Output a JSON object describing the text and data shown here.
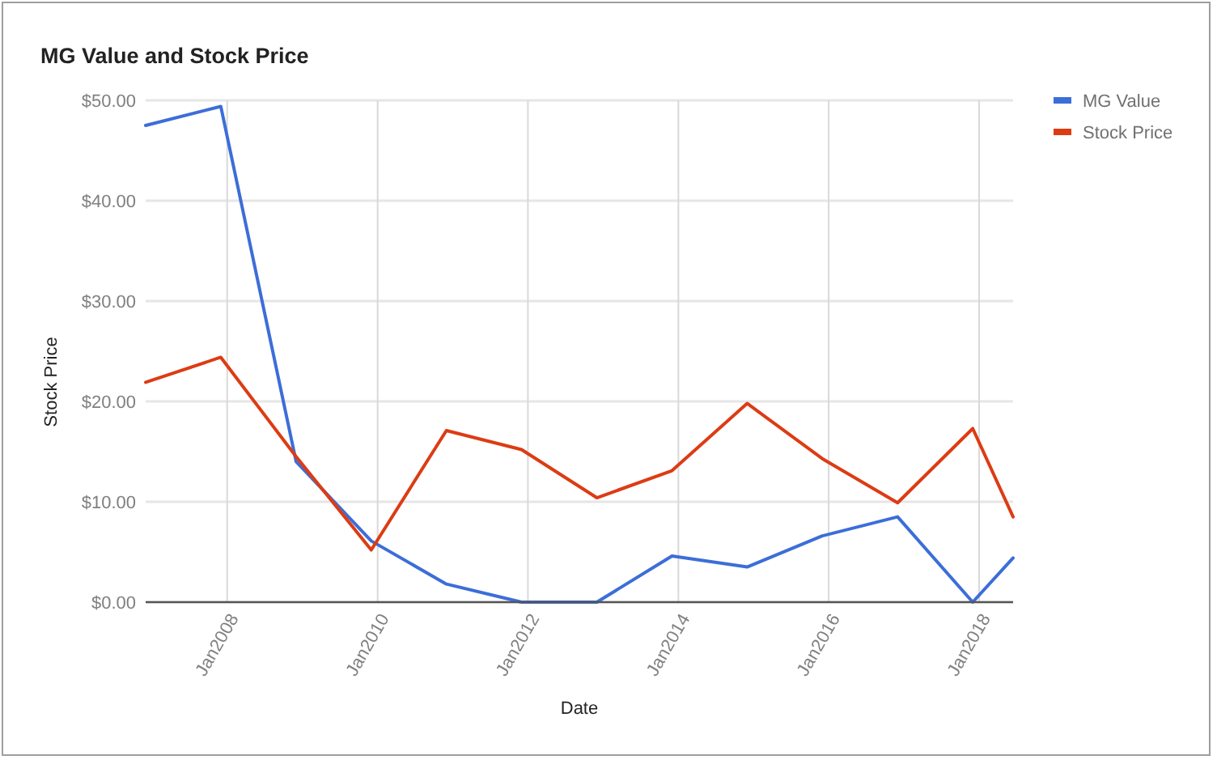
{
  "chart_data": {
    "type": "line",
    "title": "MG Value and Stock Price",
    "xlabel": "Date",
    "ylabel": "Stock Price",
    "x": [
      "2006-12-01",
      "2007-12-01",
      "2008-12-01",
      "2009-12-01",
      "2010-12-01",
      "2011-12-01",
      "2012-12-01",
      "2013-12-01",
      "2014-12-01",
      "2015-12-01",
      "2016-12-01",
      "2017-12-01",
      "2018-06-15"
    ],
    "series": [
      {
        "name": "MG Value",
        "color": "#3c6ed8",
        "values": [
          47.5,
          49.4,
          14.0,
          6.1,
          1.8,
          0,
          0,
          4.6,
          3.5,
          6.6,
          8.5,
          0,
          4.4
        ]
      },
      {
        "name": "Stock Price",
        "color": "#dc3c14",
        "values": [
          21.9,
          24.4,
          14.5,
          5.2,
          17.1,
          15.2,
          10.4,
          13.1,
          19.8,
          14.3,
          9.9,
          17.3,
          8.5
        ]
      }
    ],
    "xlim": [
      "2006-12-01",
      "2018-06-15"
    ],
    "xticks": [
      {
        "value": "2008-01-01",
        "label": "Jan2008"
      },
      {
        "value": "2010-01-01",
        "label": "Jan2010"
      },
      {
        "value": "2012-01-01",
        "label": "Jan2012"
      },
      {
        "value": "2014-01-01",
        "label": "Jan2014"
      },
      {
        "value": "2016-01-01",
        "label": "Jan2016"
      },
      {
        "value": "2018-01-01",
        "label": "Jan2018"
      }
    ],
    "ylim": [
      0,
      50
    ],
    "yticks": [
      {
        "value": 0,
        "label": "$0.00"
      },
      {
        "value": 10,
        "label": "$10.00"
      },
      {
        "value": 20,
        "label": "$20.00"
      },
      {
        "value": 30,
        "label": "$30.00"
      },
      {
        "value": 40,
        "label": "$40.00"
      },
      {
        "value": 50,
        "label": "$50.00"
      }
    ],
    "grid": true,
    "legend": "top right",
    "marker": "none"
  }
}
